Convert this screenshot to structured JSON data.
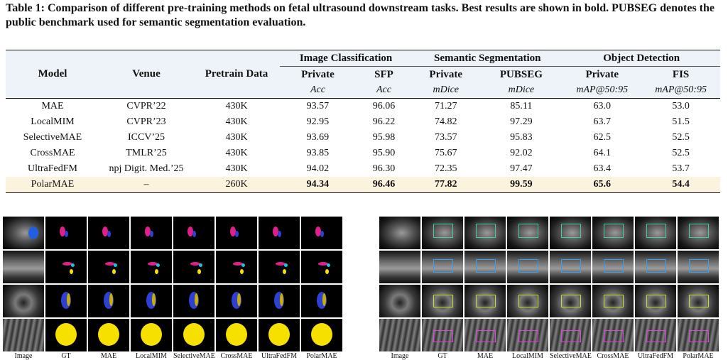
{
  "caption": "Table 1: Comparison of different pre-training methods on fetal ultrasound downstream tasks. Best results are shown in bold. PUBSEG denotes the public benchmark used for semantic segmentation evaluation.",
  "table": {
    "group_headers": [
      "Image Classification",
      "Semantic Segmentation",
      "Object Detection"
    ],
    "fixed_headers": [
      "Model",
      "Venue",
      "Pretrain Data"
    ],
    "sub_headers": [
      "Private",
      "SFP",
      "Private",
      "PUBSEG",
      "Private",
      "FIS"
    ],
    "metrics": [
      "Acc",
      "Acc",
      "mDice",
      "mDice",
      "mAP@50:95",
      "mAP@50:95"
    ],
    "rows": [
      [
        "MAE",
        "CVPR’22",
        "430K",
        "93.57",
        "96.06",
        "71.27",
        "85.11",
        "63.0",
        "53.0"
      ],
      [
        "LocalMIM",
        "CVPR’23",
        "430K",
        "92.95",
        "96.22",
        "74.82",
        "97.29",
        "63.7",
        "51.5"
      ],
      [
        "SelectiveMAE",
        "ICCV’25",
        "430K",
        "93.69",
        "95.98",
        "73.57",
        "95.83",
        "62.5",
        "52.5"
      ],
      [
        "CrossMAE",
        "TMLR’25",
        "430K",
        "93.85",
        "95.90",
        "75.67",
        "92.02",
        "64.1",
        "52.5"
      ],
      [
        "UltraFedFM",
        "npj Digit. Med.’25",
        "430K",
        "94.02",
        "96.30",
        "72.35",
        "97.47",
        "63.4",
        "53.7"
      ]
    ],
    "highlight_row": [
      "PolarMAE",
      "–",
      "260K",
      "94.34",
      "96.46",
      "77.82",
      "99.59",
      "65.6",
      "54.4"
    ]
  },
  "figure_left_labels": [
    "Image",
    "GT",
    "MAE",
    "LocalMIM",
    "SelectiveMAE",
    "CrossMAE",
    "UltraFedFM",
    "PolarMAE"
  ],
  "figure_right_labels": [
    "Image",
    "GT",
    "MAE",
    "LocalMIM",
    "SelectiveMAE",
    "CrossMAE",
    "UltraFedFM",
    "PolarMAE"
  ],
  "colors": {
    "header_bg": "#eef3f9",
    "highlight_bg": "#fbf3dd",
    "seg_magenta": "#e0208a",
    "seg_blue": "#3040d0",
    "seg_yellow": "#f5e000"
  }
}
